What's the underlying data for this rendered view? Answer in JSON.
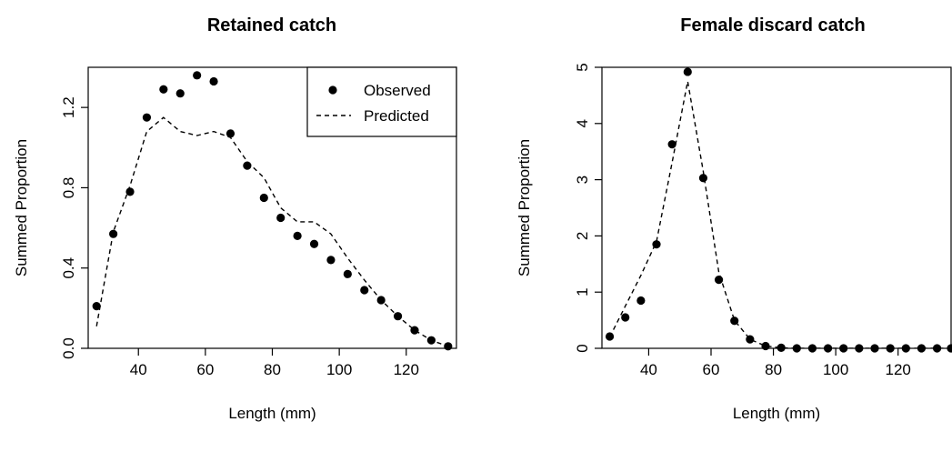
{
  "chart_data": [
    {
      "type": "scatter",
      "title": "Retained catch",
      "xlabel": "Length (mm)",
      "ylabel": "Summed Proportion",
      "xlim": [
        25,
        135
      ],
      "ylim": [
        0,
        1.4
      ],
      "xticks": [
        40,
        60,
        80,
        100,
        120
      ],
      "yticks": [
        0.0,
        0.4,
        0.8,
        1.2
      ],
      "ytick_labels": [
        "0.0",
        "0.4",
        "0.8",
        "1.2"
      ],
      "grid": false,
      "legend": {
        "position": "top-right",
        "entries": [
          "Observed",
          "Predicted"
        ]
      },
      "series": [
        {
          "name": "Observed",
          "style": "points",
          "x": [
            27.5,
            32.5,
            37.5,
            42.5,
            47.5,
            52.5,
            57.5,
            62.5,
            67.5,
            72.5,
            77.5,
            82.5,
            87.5,
            92.5,
            97.5,
            102.5,
            107.5,
            112.5,
            117.5,
            122.5,
            127.5,
            132.5
          ],
          "y": [
            0.21,
            0.57,
            0.78,
            1.15,
            1.29,
            1.27,
            1.36,
            1.33,
            1.07,
            0.91,
            0.75,
            0.65,
            0.56,
            0.52,
            0.44,
            0.37,
            0.29,
            0.24,
            0.16,
            0.09,
            0.04,
            0.01
          ]
        },
        {
          "name": "Predicted",
          "style": "dashed",
          "x": [
            27.5,
            32.5,
            37.5,
            42.5,
            47.5,
            52.5,
            57.5,
            62.5,
            67.5,
            72.5,
            77.5,
            82.5,
            87.5,
            92.5,
            97.5,
            102.5,
            107.5,
            112.5,
            117.5,
            122.5,
            127.5,
            132.5
          ],
          "y": [
            0.11,
            0.58,
            0.81,
            1.08,
            1.15,
            1.08,
            1.06,
            1.08,
            1.05,
            0.93,
            0.85,
            0.7,
            0.63,
            0.63,
            0.57,
            0.45,
            0.34,
            0.24,
            0.16,
            0.09,
            0.04,
            0.01
          ]
        }
      ]
    },
    {
      "type": "scatter",
      "title": "Female discard catch",
      "xlabel": "Length (mm)",
      "ylabel": "Summed Proportion",
      "xlim": [
        25,
        137
      ],
      "ylim": [
        0,
        5
      ],
      "xticks": [
        40,
        60,
        80,
        100,
        120
      ],
      "yticks": [
        0,
        1,
        2,
        3,
        4,
        5
      ],
      "ytick_labels": [
        "0",
        "1",
        "2",
        "3",
        "4",
        "5"
      ],
      "grid": false,
      "series": [
        {
          "style": "points",
          "x": [
            27.5,
            32.5,
            37.5,
            42.5,
            47.5,
            52.5,
            57.5,
            62.5,
            67.5,
            72.5,
            77.5,
            82.5,
            87.5,
            92.5,
            97.5,
            102.5,
            107.5,
            112.5,
            117.5,
            122.5,
            127.5,
            132.5,
            137.0
          ],
          "y": [
            0.21,
            0.55,
            0.85,
            1.85,
            3.63,
            4.92,
            3.03,
            1.22,
            0.49,
            0.16,
            0.04,
            0.01,
            0.0,
            0.0,
            0.0,
            0.0,
            0.0,
            0.0,
            0.0,
            0.0,
            0.0,
            0.0,
            0.0
          ]
        },
        {
          "style": "dashed",
          "x": [
            27.5,
            32.5,
            37.5,
            42.5,
            47.5,
            52.5,
            57.5,
            62.5,
            67.5,
            72.5,
            77.5,
            82.5,
            87.5,
            92.5,
            97.5,
            102.5,
            107.5,
            112.5,
            117.5,
            122.5,
            127.5,
            132.5,
            137.0
          ],
          "y": [
            0.2,
            0.75,
            1.3,
            1.9,
            3.3,
            4.75,
            3.15,
            1.35,
            0.5,
            0.16,
            0.04,
            0.01,
            0.0,
            0.0,
            0.0,
            0.0,
            0.0,
            0.0,
            0.0,
            0.0,
            0.0,
            0.0,
            0.0
          ]
        }
      ]
    }
  ]
}
